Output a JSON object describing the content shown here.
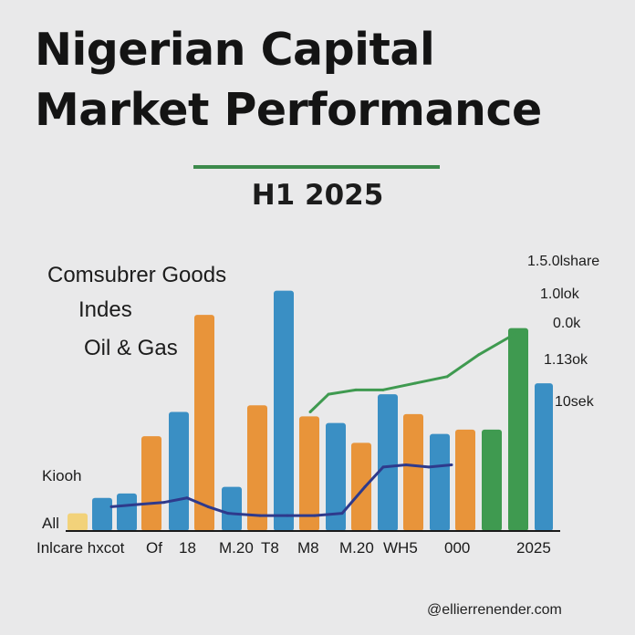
{
  "title_line1": "Nigerian Capital",
  "title_line2": "Market Performance",
  "subtitle": "H1 2025",
  "legend": {
    "item1": "Comsubrer Goods",
    "item2": "Indes",
    "item3": "Oil & Gas"
  },
  "right_labels": [
    "1.5.0lshare",
    "1.0lok",
    "0.0k",
    "1.13ok",
    "10sek"
  ],
  "side_labels": {
    "upper": "Kiooh",
    "lower": "All"
  },
  "watermark": "@ellierrenender.com",
  "colors": {
    "blue": "#3a8fc4",
    "orange": "#e8943a",
    "green": "#3f9a50",
    "navy": "#2e3a8c",
    "yellow": "#f2d27a",
    "axis": "#1a1a1a"
  },
  "chart_data": {
    "type": "bar",
    "title": "Nigerian Capital Market Performance",
    "subtitle": "H1 2025",
    "x_tick_labels": [
      "Inlcare hxcot",
      "Of",
      "18",
      "M.20",
      "T8",
      "M8",
      "M.20",
      "WH5",
      "000",
      "2025"
    ],
    "bars": [
      {
        "color": "yellow",
        "value": 8
      },
      {
        "color": "blue",
        "value": 15
      },
      {
        "color": "blue",
        "value": 17
      },
      {
        "color": "orange",
        "value": 43
      },
      {
        "color": "blue",
        "value": 54
      },
      {
        "color": "orange",
        "value": 98
      },
      {
        "color": "blue",
        "value": 20
      },
      {
        "color": "orange",
        "value": 57
      },
      {
        "color": "blue",
        "value": 109
      },
      {
        "color": "orange",
        "value": 52
      },
      {
        "color": "blue",
        "value": 49
      },
      {
        "color": "orange",
        "value": 40
      },
      {
        "color": "blue",
        "value": 62
      },
      {
        "color": "orange",
        "value": 53
      },
      {
        "color": "blue",
        "value": 44
      },
      {
        "color": "orange",
        "value": 46
      },
      {
        "color": "green",
        "value": 46
      },
      {
        "color": "green",
        "value": 92
      },
      {
        "color": "blue",
        "value": 67
      }
    ],
    "lines": [
      {
        "color": "navy",
        "values": [
          11,
          12,
          13,
          15,
          11,
          8,
          7,
          7,
          7,
          8,
          20,
          29,
          30,
          29,
          30
        ]
      },
      {
        "color": "green",
        "values": [
          54,
          62,
          64,
          64,
          67,
          70,
          80,
          90
        ]
      }
    ],
    "ylim": [
      0,
      120
    ],
    "grid": false
  }
}
